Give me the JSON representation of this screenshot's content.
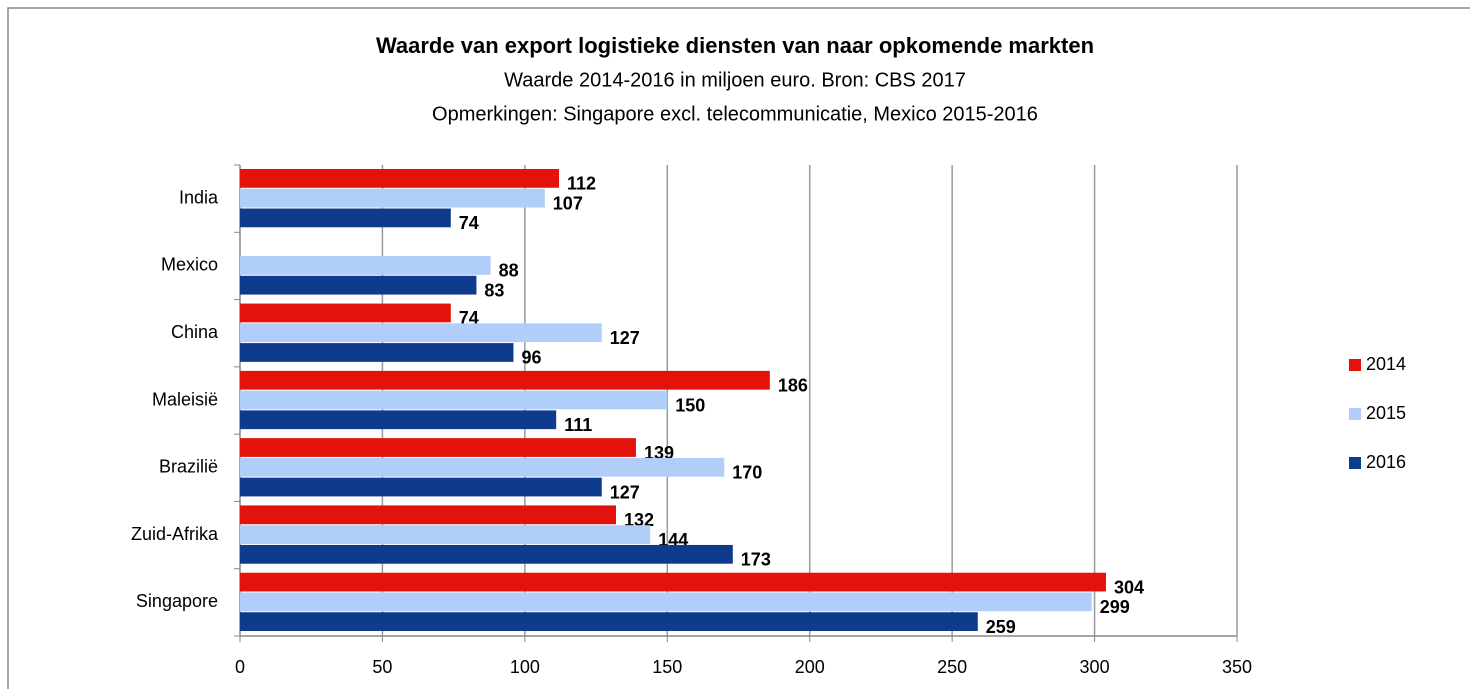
{
  "chart_data": {
    "type": "bar",
    "orientation": "horizontal",
    "title": "Waarde van export logistieke diensten van naar opkomende markten",
    "subtitle": [
      "Waarde 2014-2016 in miljoen euro. Bron: CBS 2017",
      "Opmerkingen: Singapore excl. telecommunicatie, Mexico 2015-2016"
    ],
    "categories": [
      "India",
      "Mexico",
      "China",
      "Maleisië",
      "Brazilië",
      "Zuid-Afrika",
      "Singapore"
    ],
    "series": [
      {
        "name": "2014",
        "color": "#e3120b",
        "values": [
          112,
          null,
          74,
          186,
          139,
          132,
          304
        ]
      },
      {
        "name": "2015",
        "color": "#b1cdf9",
        "values": [
          107,
          88,
          127,
          150,
          170,
          144,
          299
        ]
      },
      {
        "name": "2016",
        "color": "#0e3b8b",
        "values": [
          74,
          83,
          96,
          111,
          127,
          173,
          259
        ]
      }
    ],
    "xlim": [
      0,
      350
    ],
    "xticks": [
      0,
      50,
      100,
      150,
      200,
      250,
      300,
      350
    ],
    "grid": true,
    "legend": "right"
  }
}
